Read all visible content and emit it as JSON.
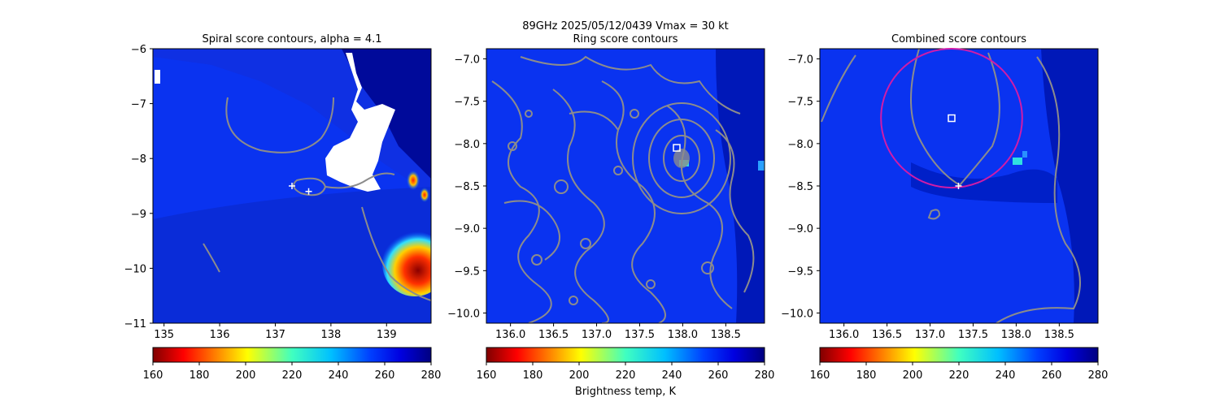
{
  "figure": {
    "suptitle": "89GHz  2025/05/12/0439    Vmax = 30 kt",
    "colorbar_label": "Brightness temp, K"
  },
  "chart_data": [
    {
      "type": "heatmap",
      "title": "Spiral score contours, alpha =  4.1",
      "xlim": [
        134.8,
        139.8
      ],
      "ylim": [
        -11,
        -6
      ],
      "xticks": [
        135,
        136,
        137,
        138,
        139
      ],
      "yticks": [
        -6,
        -7,
        -8,
        -9,
        -10,
        -11
      ],
      "markers": [
        {
          "kind": "plus",
          "x": 137.3,
          "y": -8.5,
          "color": "#ffffff"
        },
        {
          "kind": "plus",
          "x": 137.6,
          "y": -8.6,
          "color": "#ffffff"
        }
      ],
      "colorbar": {
        "cmap": "jet_r",
        "min": 160,
        "max": 280,
        "ticks": [
          160,
          180,
          200,
          220,
          240,
          260,
          280
        ]
      }
    },
    {
      "type": "heatmap",
      "title": "Ring score contours",
      "xlim": [
        135.72,
        138.95
      ],
      "ylim": [
        -10.12,
        -6.88
      ],
      "xticks": [
        136.0,
        136.5,
        137.0,
        137.5,
        138.0,
        138.5
      ],
      "yticks": [
        -7.0,
        -7.5,
        -8.0,
        -8.5,
        -9.0,
        -9.5,
        -10.0
      ],
      "markers": [
        {
          "kind": "square",
          "x": 137.93,
          "y": -8.05,
          "color": "#ffffff"
        }
      ],
      "colorbar": {
        "cmap": "jet_r",
        "min": 160,
        "max": 280,
        "ticks": [
          160,
          180,
          200,
          220,
          240,
          260,
          280
        ]
      }
    },
    {
      "type": "heatmap",
      "title": "Combined score contours",
      "xlim": [
        135.72,
        138.95
      ],
      "ylim": [
        -10.12,
        -6.88
      ],
      "xticks": [
        136.0,
        136.5,
        137.0,
        137.5,
        138.0,
        138.5
      ],
      "yticks": [
        -7.0,
        -7.5,
        -8.0,
        -8.5,
        -9.0,
        -9.5,
        -10.0
      ],
      "markers": [
        {
          "kind": "square",
          "x": 137.25,
          "y": -7.7,
          "color": "#ffffff"
        },
        {
          "kind": "plus",
          "x": 137.33,
          "y": -8.5,
          "color": "#ffffff"
        }
      ],
      "circle": {
        "cx": 137.25,
        "cy": -7.7,
        "r": 0.82,
        "color": "#d01ca8"
      },
      "colorbar": {
        "cmap": "jet_r",
        "min": 160,
        "max": 280,
        "ticks": [
          160,
          180,
          200,
          220,
          240,
          260,
          280
        ]
      }
    }
  ]
}
